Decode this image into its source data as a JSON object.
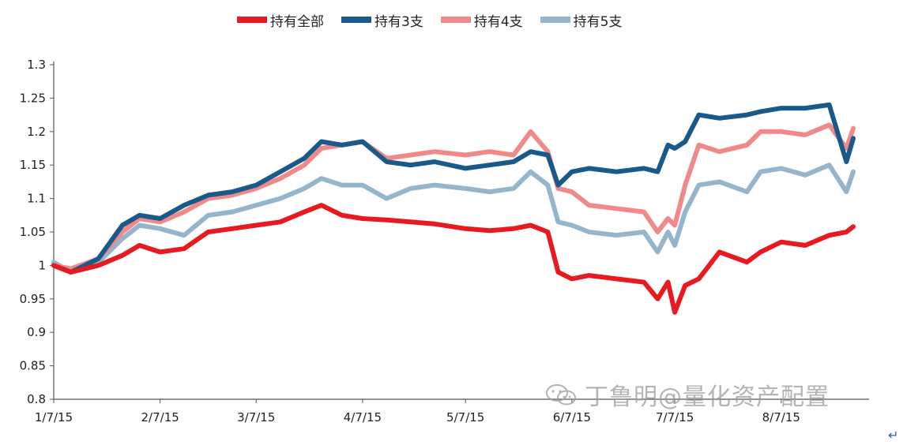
{
  "chart_data": {
    "type": "line",
    "ylim": [
      0.8,
      1.3
    ],
    "y_ticks": [
      "1.3",
      "1.25",
      "1.2",
      "1.15",
      "1.1",
      "1.05",
      "1",
      "0.95",
      "0.9",
      "0.85",
      "0.8"
    ],
    "x_ticks": [
      "1/7/15",
      "2/7/15",
      "3/7/15",
      "4/7/15",
      "5/7/15",
      "6/7/15",
      "7/7/15",
      "8/7/15"
    ],
    "grid": false,
    "legend_position": "top",
    "series": [
      {
        "name": "持有全部",
        "color": "#e8191f",
        "points": [
          [
            "1/7/15",
            1.0
          ],
          [
            "1/12/15",
            0.99
          ],
          [
            "1/20/15",
            1.0
          ],
          [
            "1/27/15",
            1.015
          ],
          [
            "2/1/15",
            1.03
          ],
          [
            "2/7/15",
            1.02
          ],
          [
            "2/14/15",
            1.025
          ],
          [
            "2/21/15",
            1.05
          ],
          [
            "2/28/15",
            1.055
          ],
          [
            "3/7/15",
            1.06
          ],
          [
            "3/14/15",
            1.065
          ],
          [
            "3/21/15",
            1.08
          ],
          [
            "3/26/15",
            1.09
          ],
          [
            "4/1/15",
            1.075
          ],
          [
            "4/7/15",
            1.07
          ],
          [
            "4/14/15",
            1.068
          ],
          [
            "4/21/15",
            1.065
          ],
          [
            "4/28/15",
            1.062
          ],
          [
            "5/7/15",
            1.055
          ],
          [
            "5/14/15",
            1.052
          ],
          [
            "5/21/15",
            1.055
          ],
          [
            "5/26/15",
            1.06
          ],
          [
            "5/31/15",
            1.05
          ],
          [
            "6/3/15",
            0.99
          ],
          [
            "6/7/15",
            0.98
          ],
          [
            "6/12/15",
            0.985
          ],
          [
            "6/20/15",
            0.98
          ],
          [
            "6/28/15",
            0.975
          ],
          [
            "7/2/15",
            0.95
          ],
          [
            "7/5/15",
            0.975
          ],
          [
            "7/7/15",
            0.93
          ],
          [
            "7/10/15",
            0.97
          ],
          [
            "7/14/15",
            0.98
          ],
          [
            "7/20/15",
            1.02
          ],
          [
            "7/28/15",
            1.005
          ],
          [
            "8/1/15",
            1.02
          ],
          [
            "8/7/15",
            1.035
          ],
          [
            "8/14/15",
            1.03
          ],
          [
            "8/21/15",
            1.045
          ],
          [
            "8/26/15",
            1.05
          ],
          [
            "8/28/15",
            1.058
          ]
        ]
      },
      {
        "name": "持有3支",
        "color": "#1a5a8a",
        "points": [
          [
            "1/7/15",
            1.0
          ],
          [
            "1/12/15",
            0.99
          ],
          [
            "1/20/15",
            1.01
          ],
          [
            "1/27/15",
            1.06
          ],
          [
            "2/1/15",
            1.075
          ],
          [
            "2/7/15",
            1.07
          ],
          [
            "2/14/15",
            1.09
          ],
          [
            "2/21/15",
            1.105
          ],
          [
            "2/28/15",
            1.11
          ],
          [
            "3/7/15",
            1.12
          ],
          [
            "3/14/15",
            1.14
          ],
          [
            "3/21/15",
            1.16
          ],
          [
            "3/26/15",
            1.185
          ],
          [
            "4/1/15",
            1.18
          ],
          [
            "4/7/15",
            1.185
          ],
          [
            "4/14/15",
            1.155
          ],
          [
            "4/21/15",
            1.15
          ],
          [
            "4/28/15",
            1.155
          ],
          [
            "5/7/15",
            1.145
          ],
          [
            "5/14/15",
            1.15
          ],
          [
            "5/21/15",
            1.155
          ],
          [
            "5/26/15",
            1.17
          ],
          [
            "5/31/15",
            1.165
          ],
          [
            "6/3/15",
            1.12
          ],
          [
            "6/7/15",
            1.14
          ],
          [
            "6/12/15",
            1.145
          ],
          [
            "6/20/15",
            1.14
          ],
          [
            "6/28/15",
            1.145
          ],
          [
            "7/2/15",
            1.14
          ],
          [
            "7/5/15",
            1.18
          ],
          [
            "7/7/15",
            1.175
          ],
          [
            "7/10/15",
            1.185
          ],
          [
            "7/14/15",
            1.225
          ],
          [
            "7/20/15",
            1.22
          ],
          [
            "7/28/15",
            1.225
          ],
          [
            "8/1/15",
            1.23
          ],
          [
            "8/7/15",
            1.235
          ],
          [
            "8/14/15",
            1.235
          ],
          [
            "8/21/15",
            1.24
          ],
          [
            "8/26/15",
            1.155
          ],
          [
            "8/28/15",
            1.19
          ]
        ]
      },
      {
        "name": "持有4支",
        "color": "#f08a8a",
        "points": [
          [
            "1/7/15",
            1.0
          ],
          [
            "1/12/15",
            0.995
          ],
          [
            "1/20/15",
            1.01
          ],
          [
            "1/27/15",
            1.05
          ],
          [
            "2/1/15",
            1.07
          ],
          [
            "2/7/15",
            1.065
          ],
          [
            "2/14/15",
            1.08
          ],
          [
            "2/21/15",
            1.1
          ],
          [
            "2/28/15",
            1.105
          ],
          [
            "3/7/15",
            1.115
          ],
          [
            "3/14/15",
            1.13
          ],
          [
            "3/21/15",
            1.15
          ],
          [
            "3/26/15",
            1.175
          ],
          [
            "4/1/15",
            1.18
          ],
          [
            "4/7/15",
            1.185
          ],
          [
            "4/14/15",
            1.16
          ],
          [
            "4/21/15",
            1.165
          ],
          [
            "4/28/15",
            1.17
          ],
          [
            "5/7/15",
            1.165
          ],
          [
            "5/14/15",
            1.17
          ],
          [
            "5/21/15",
            1.165
          ],
          [
            "5/26/15",
            1.2
          ],
          [
            "5/31/15",
            1.17
          ],
          [
            "6/3/15",
            1.115
          ],
          [
            "6/7/15",
            1.11
          ],
          [
            "6/12/15",
            1.09
          ],
          [
            "6/20/15",
            1.085
          ],
          [
            "6/28/15",
            1.08
          ],
          [
            "7/2/15",
            1.05
          ],
          [
            "7/5/15",
            1.07
          ],
          [
            "7/7/15",
            1.06
          ],
          [
            "7/10/15",
            1.12
          ],
          [
            "7/14/15",
            1.18
          ],
          [
            "7/20/15",
            1.17
          ],
          [
            "7/28/15",
            1.18
          ],
          [
            "8/1/15",
            1.2
          ],
          [
            "8/7/15",
            1.2
          ],
          [
            "8/14/15",
            1.195
          ],
          [
            "8/21/15",
            1.21
          ],
          [
            "8/26/15",
            1.175
          ],
          [
            "8/28/15",
            1.205
          ]
        ]
      },
      {
        "name": "持有5支",
        "color": "#95b5cc",
        "points": [
          [
            "1/7/15",
            1.005
          ],
          [
            "1/12/15",
            0.99
          ],
          [
            "1/20/15",
            1.005
          ],
          [
            "1/27/15",
            1.04
          ],
          [
            "2/1/15",
            1.06
          ],
          [
            "2/7/15",
            1.055
          ],
          [
            "2/14/15",
            1.045
          ],
          [
            "2/21/15",
            1.075
          ],
          [
            "2/28/15",
            1.08
          ],
          [
            "3/7/15",
            1.09
          ],
          [
            "3/14/15",
            1.1
          ],
          [
            "3/21/15",
            1.115
          ],
          [
            "3/26/15",
            1.13
          ],
          [
            "4/1/15",
            1.12
          ],
          [
            "4/7/15",
            1.12
          ],
          [
            "4/14/15",
            1.1
          ],
          [
            "4/21/15",
            1.115
          ],
          [
            "4/28/15",
            1.12
          ],
          [
            "5/7/15",
            1.115
          ],
          [
            "5/14/15",
            1.11
          ],
          [
            "5/21/15",
            1.115
          ],
          [
            "5/26/15",
            1.14
          ],
          [
            "5/31/15",
            1.12
          ],
          [
            "6/3/15",
            1.065
          ],
          [
            "6/7/15",
            1.06
          ],
          [
            "6/12/15",
            1.05
          ],
          [
            "6/20/15",
            1.045
          ],
          [
            "6/28/15",
            1.05
          ],
          [
            "7/2/15",
            1.02
          ],
          [
            "7/5/15",
            1.05
          ],
          [
            "7/7/15",
            1.03
          ],
          [
            "7/10/15",
            1.08
          ],
          [
            "7/14/15",
            1.12
          ],
          [
            "7/20/15",
            1.125
          ],
          [
            "7/28/15",
            1.11
          ],
          [
            "8/1/15",
            1.14
          ],
          [
            "8/7/15",
            1.145
          ],
          [
            "8/14/15",
            1.135
          ],
          [
            "8/21/15",
            1.15
          ],
          [
            "8/26/15",
            1.11
          ],
          [
            "8/28/15",
            1.14
          ]
        ]
      }
    ]
  },
  "watermark": {
    "text": "丁鲁明@量化资产配置",
    "icon": "wechat-icon"
  },
  "return_mark": "↵"
}
